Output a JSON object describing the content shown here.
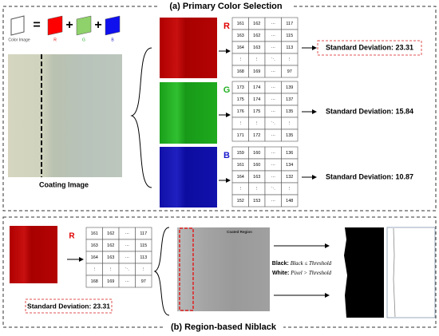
{
  "section_a": {
    "title": "(a) Primary Color Selection",
    "color_image_label": "Color Image",
    "equals": "=",
    "plus": "+",
    "coating_image_label": "Coating Image",
    "channels": [
      {
        "label": "R",
        "color": "#e00000",
        "matrix": [
          [
            "161",
            "162",
            "···",
            "117"
          ],
          [
            "163",
            "162",
            "···",
            "115"
          ],
          [
            "164",
            "163",
            "···",
            "113"
          ],
          [
            "⋮",
            "⋮",
            "⋱",
            "⋮"
          ],
          [
            "168",
            "169",
            "···",
            "97"
          ]
        ],
        "std": "Standard Deviation: 23.31"
      },
      {
        "label": "G",
        "color": "#22b022",
        "matrix": [
          [
            "173",
            "174",
            "···",
            "139"
          ],
          [
            "175",
            "174",
            "···",
            "137"
          ],
          [
            "176",
            "175",
            "···",
            "135"
          ],
          [
            "⋮",
            "⋮",
            "⋱",
            "⋮"
          ],
          [
            "171",
            "172",
            "···",
            "135"
          ]
        ],
        "std": "Standard Deviation: 15.84"
      },
      {
        "label": "B",
        "color": "#1a1acc",
        "matrix": [
          [
            "159",
            "160",
            "···",
            "136"
          ],
          [
            "161",
            "160",
            "···",
            "134"
          ],
          [
            "164",
            "163",
            "···",
            "132"
          ],
          [
            "⋮",
            "⋮",
            "⋱",
            "⋮"
          ],
          [
            "152",
            "153",
            "···",
            "148"
          ]
        ],
        "std": "Standard Deviation: 10.87"
      }
    ]
  },
  "section_b": {
    "title": "(b) Region-based Niblack",
    "channel_label": "R",
    "matrix": [
      [
        "161",
        "162",
        "···",
        "117"
      ],
      [
        "163",
        "162",
        "···",
        "115"
      ],
      [
        "164",
        "163",
        "···",
        "113"
      ],
      [
        "⋮",
        "⋮",
        "⋱",
        "⋮"
      ],
      [
        "168",
        "169",
        "···",
        "97"
      ]
    ],
    "std": "Standard Deviation: 23.31",
    "region_label": "Coated Region",
    "rule_black_prefix": "Black:",
    "rule_black": "Black ≤ Threshold",
    "rule_white_prefix": "White:",
    "rule_white": "Pixel > Threshold"
  }
}
